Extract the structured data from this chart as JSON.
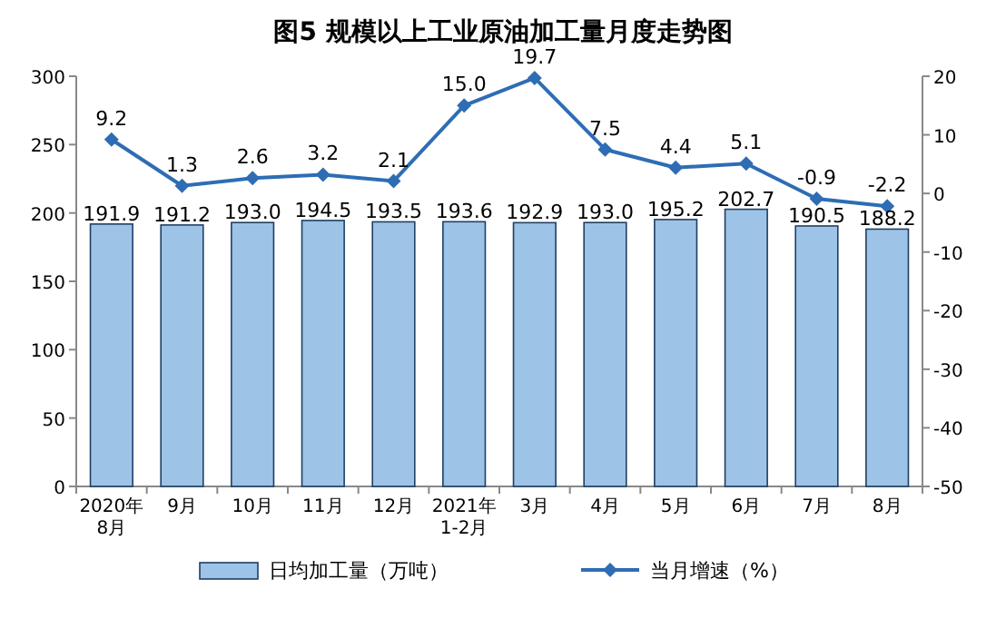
{
  "chart_data": {
    "type": "bar",
    "title": "图5  规模以上工业原油加工量月度走势图",
    "categories": [
      "2020年\n8月",
      "9月",
      "10月",
      "11月",
      "12月",
      "2021年\n1-2月",
      "3月",
      "4月",
      "5月",
      "6月",
      "7月",
      "8月"
    ],
    "series": [
      {
        "name": "日均加工量（万吨）",
        "color": "#9dc3e6",
        "values": [
          191.9,
          191.2,
          193.0,
          194.5,
          193.5,
          193.6,
          192.9,
          193.0,
          195.2,
          202.7,
          190.5,
          188.2
        ],
        "value_labels": [
          "191.9",
          "191.2",
          "193.0",
          "194.5",
          "193.5",
          "193.6",
          "192.9",
          "193.0",
          "195.2",
          "202.7",
          "190.5",
          "188.2"
        ]
      },
      {
        "name": "当月增速（%）",
        "type": "line",
        "axis": "y2",
        "marker": "diamond",
        "color": "#2e6db4",
        "values": [
          9.2,
          1.3,
          2.6,
          3.2,
          2.1,
          15.0,
          19.7,
          7.5,
          4.4,
          5.1,
          -0.9,
          -2.2
        ],
        "value_labels": [
          "9.2",
          "1.3",
          "2.6",
          "3.2",
          "2.1",
          "15.0",
          "19.7",
          "7.5",
          "4.4",
          "5.1",
          "-0.9",
          "-2.2"
        ]
      }
    ],
    "ylim": [
      0,
      300
    ],
    "yticks": [
      0,
      50,
      100,
      150,
      200,
      250,
      300
    ],
    "y2lim": [
      -50,
      20
    ],
    "y2ticks": [
      -50,
      -40,
      -30,
      -20,
      -10,
      0,
      10,
      20
    ],
    "legend": "bottom"
  }
}
